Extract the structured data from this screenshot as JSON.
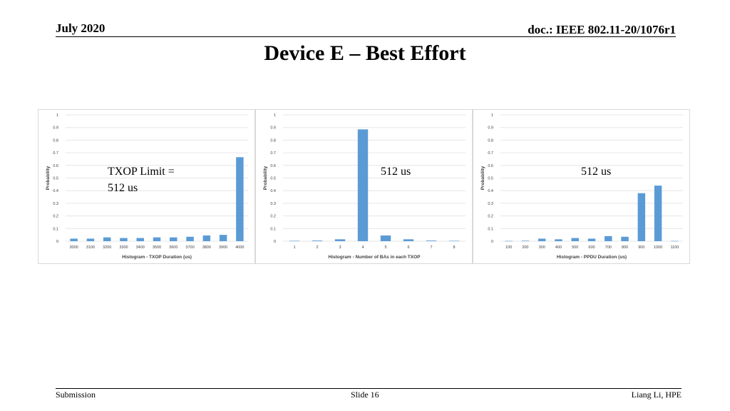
{
  "header": {
    "date": "July 2020",
    "doc": "doc.: IEEE 802.11-20/1076r1"
  },
  "title": "Device E – Best Effort",
  "footer": {
    "left": "Submission",
    "center": "Slide 16",
    "right": "Liang Li, HPE"
  },
  "colors": {
    "bar": "#5b9bd5",
    "grid": "#e6e6e6",
    "axis_text": "#404040"
  },
  "chart_data": [
    {
      "type": "bar",
      "annotation": "TXOP Limit =\n512 us",
      "xlabel": "Histogram - TXOP Duration (us)",
      "ylabel": "Probability",
      "ylim": [
        0,
        1
      ],
      "yticks": [
        "0",
        "0.1",
        "0.2",
        "0.3",
        "0.4",
        "0.5",
        "0.6",
        "0.7",
        "0.8",
        "0.9",
        "1"
      ],
      "grid": true,
      "categories": [
        "3000",
        "3100",
        "3200",
        "3300",
        "3400",
        "3500",
        "3600",
        "3700",
        "3800",
        "3900",
        "4000"
      ],
      "values": [
        0.02,
        0.02,
        0.03,
        0.025,
        0.025,
        0.03,
        0.03,
        0.035,
        0.045,
        0.05,
        0.665
      ]
    },
    {
      "type": "bar",
      "annotation": "512 us",
      "xlabel": "Histogram - Number of BAs in each TXOP",
      "ylabel": "Probability",
      "ylim": [
        0,
        1
      ],
      "yticks": [
        "0",
        "0.1",
        "0.2",
        "0.3",
        "0.4",
        "0.5",
        "0.6",
        "0.7",
        "0.8",
        "0.9",
        "1"
      ],
      "grid": true,
      "categories": [
        "1",
        "2",
        "3",
        "4",
        "5",
        "6",
        "7",
        "8"
      ],
      "values": [
        0.003,
        0.005,
        0.015,
        0.885,
        0.045,
        0.015,
        0.005,
        0.003
      ]
    },
    {
      "type": "bar",
      "annotation": "512 us",
      "xlabel": "Histogram - PPDU Duration (us)",
      "ylabel": "Probability",
      "ylim": [
        0,
        1
      ],
      "yticks": [
        "0",
        "0.1",
        "0.2",
        "0.3",
        "0.4",
        "0.5",
        "0.6",
        "0.7",
        "0.8",
        "0.9",
        "1"
      ],
      "grid": true,
      "categories": [
        "100",
        "200",
        "300",
        "400",
        "500",
        "600",
        "700",
        "800",
        "900",
        "1000",
        "1100"
      ],
      "values": [
        0.002,
        0.004,
        0.02,
        0.015,
        0.025,
        0.02,
        0.04,
        0.035,
        0.38,
        0.44,
        0.002
      ]
    }
  ]
}
